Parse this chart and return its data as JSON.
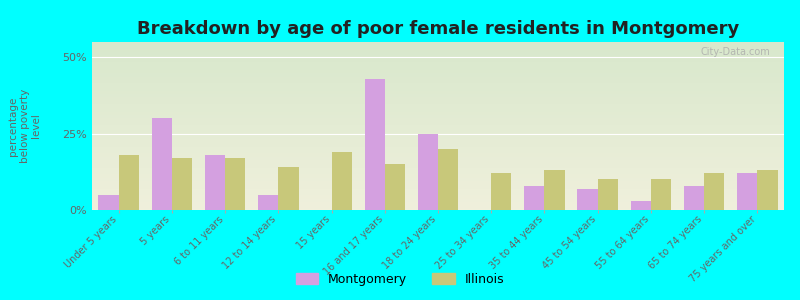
{
  "title": "Breakdown by age of poor female residents in Montgomery",
  "ylabel": "percentage\nbelow poverty\nlevel",
  "categories": [
    "Under 5 years",
    "5 years",
    "6 to 11 years",
    "12 to 14 years",
    "15 years",
    "16 and 17 years",
    "18 to 24 years",
    "25 to 34 years",
    "35 to 44 years",
    "45 to 54 years",
    "55 to 64 years",
    "65 to 74 years",
    "75 years and over"
  ],
  "montgomery_values": [
    5,
    30,
    18,
    5,
    0,
    43,
    25,
    0,
    8,
    7,
    3,
    8,
    12
  ],
  "illinois_values": [
    18,
    17,
    17,
    14,
    19,
    15,
    20,
    12,
    13,
    10,
    10,
    12,
    13
  ],
  "montgomery_color": "#d4a0e0",
  "illinois_color": "#c8c87a",
  "background_color": "#00ffff",
  "ylim": [
    0,
    55
  ],
  "yticks": [
    0,
    25,
    50
  ],
  "bar_width": 0.38,
  "title_fontsize": 13,
  "tick_label_fontsize": 7,
  "ylabel_fontsize": 7.5,
  "legend_labels": [
    "Montgomery",
    "Illinois"
  ],
  "watermark": "City-Data.com"
}
